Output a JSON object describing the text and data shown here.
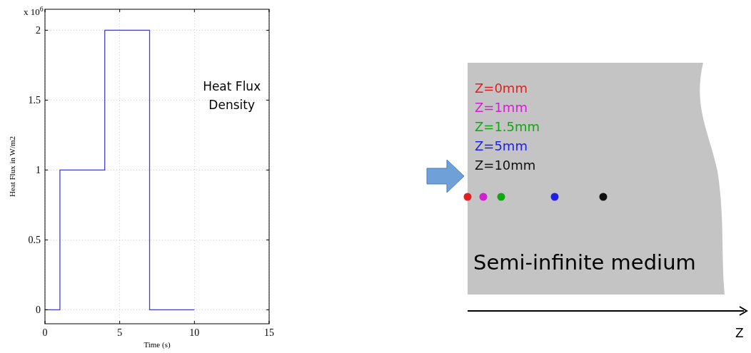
{
  "chart_data": [
    {
      "type": "step",
      "xlabel": "Time (s)",
      "ylabel": "Heat Flux in W/m2",
      "x": [
        0,
        1,
        4,
        7,
        10
      ],
      "series": [
        {
          "color": "#4040d0",
          "values": [
            0,
            1,
            2,
            0,
            0
          ]
        }
      ],
      "xlim": [
        0,
        15
      ],
      "xticks": [
        0,
        5,
        10,
        15
      ],
      "ylim": [
        -0.1,
        2.15
      ],
      "yticks": [
        0,
        0.5,
        1,
        1.5,
        2
      ],
      "grid": true,
      "annotations": [
        "x 10$^{6}$",
        "Heat Flux\nDensity"
      ]
    },
    {
      "type": "other",
      "categories": [
        "Z=0mm",
        "Z=1mm",
        "Z=1.5mm",
        "Z=5mm",
        "Z=10mm"
      ],
      "colors": [
        "#e02020",
        "#d020d0",
        "#10a810",
        "#2020e0",
        "#101010"
      ],
      "annotations": [
        "Semi-infinite medium",
        "Z"
      ]
    }
  ]
}
